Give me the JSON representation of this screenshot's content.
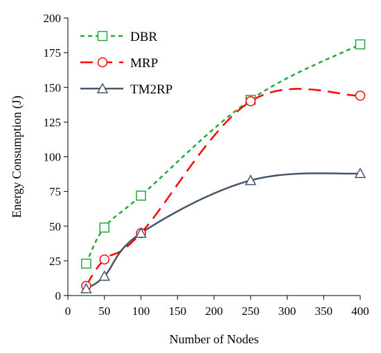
{
  "chart_data": {
    "type": "line",
    "xlabel": "Number of Nodes",
    "ylabel": "Energy Consumption (J)",
    "xlim": [
      0,
      400
    ],
    "ylim": [
      0,
      200
    ],
    "xticks": [
      0,
      50,
      100,
      150,
      200,
      250,
      300,
      350,
      400
    ],
    "yticks": [
      0,
      25,
      50,
      75,
      100,
      125,
      150,
      175,
      200
    ],
    "grid": false,
    "legend_position": "top-left",
    "series": [
      {
        "name": "DBR",
        "color": "#1faa3c",
        "marker": "square",
        "line_style": "dotted",
        "x": [
          25,
          50,
          100,
          250,
          400
        ],
        "y": [
          23,
          49,
          72,
          141,
          181
        ]
      },
      {
        "name": "MRP",
        "color": "#ff0000",
        "marker": "circle",
        "line_style": "dashed",
        "x": [
          25,
          50,
          100,
          250,
          400
        ],
        "y": [
          7,
          26,
          45,
          140,
          144
        ]
      },
      {
        "name": "TM2RP",
        "color": "#44546a",
        "marker": "triangle",
        "line_style": "solid",
        "x": [
          25,
          50,
          100,
          250,
          400
        ],
        "y": [
          5,
          14,
          45,
          83,
          88
        ]
      }
    ]
  }
}
